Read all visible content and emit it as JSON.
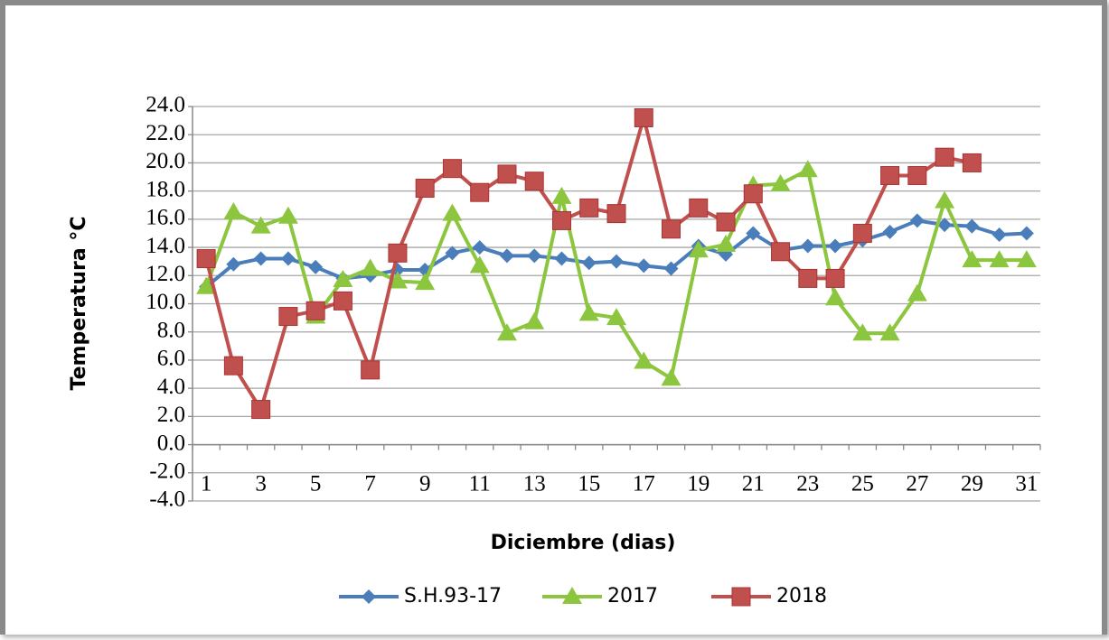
{
  "chart_data": {
    "type": "line",
    "xlabel": "Diciembre  (dias)",
    "ylabel": "Temperatura  °C",
    "categories": [
      "1",
      null,
      "3",
      null,
      "5",
      null,
      "7",
      null,
      "9",
      null,
      "11",
      null,
      "13",
      null,
      "15",
      null,
      "17",
      null,
      "19",
      null,
      "21",
      null,
      "23",
      null,
      "25",
      null,
      "27",
      null,
      "29",
      null,
      "31"
    ],
    "series": [
      {
        "name": "S.H.93-17",
        "color": "#4a7ebb",
        "marker": "diamond",
        "values": [
          11.2,
          12.8,
          13.2,
          13.2,
          12.6,
          11.8,
          12.0,
          12.4,
          12.4,
          13.6,
          14.0,
          13.4,
          13.4,
          13.2,
          12.9,
          13.0,
          12.7,
          12.5,
          14.1,
          13.5,
          15.0,
          13.8,
          14.1,
          14.1,
          14.5,
          15.1,
          15.9,
          15.6,
          15.5,
          14.9,
          15.0
        ]
      },
      {
        "name": "2017",
        "color": "#8cc63f",
        "marker": "triangle",
        "values": [
          11.2,
          16.5,
          15.5,
          16.2,
          9.1,
          11.7,
          12.5,
          11.6,
          11.5,
          16.4,
          12.7,
          7.9,
          8.7,
          17.6,
          9.3,
          9.0,
          5.9,
          4.7,
          13.8,
          14.2,
          18.4,
          18.5,
          19.5,
          10.4,
          7.9,
          7.9,
          10.7,
          17.3,
          13.1,
          13.1,
          13.1
        ]
      },
      {
        "name": "2018",
        "color": "#c0504d",
        "marker": "square",
        "values": [
          13.2,
          5.6,
          2.5,
          9.1,
          9.5,
          10.2,
          5.3,
          13.6,
          18.2,
          19.6,
          17.9,
          19.2,
          18.7,
          15.9,
          16.8,
          16.4,
          23.2,
          15.3,
          16.8,
          15.8,
          17.8,
          13.7,
          11.8,
          11.8,
          15.0,
          19.1,
          19.1,
          20.4,
          20.0,
          null,
          null
        ]
      }
    ],
    "ylim": [
      -4,
      24
    ],
    "yticks": [
      {
        "value": -4,
        "label": "-4.0"
      },
      {
        "value": -2,
        "label": "-2.0"
      },
      {
        "value": 0,
        "label": "0.0"
      },
      {
        "value": 2,
        "label": "2.0"
      },
      {
        "value": 4,
        "label": "4.0"
      },
      {
        "value": 6,
        "label": "6.0"
      },
      {
        "value": 8,
        "label": "8.0"
      },
      {
        "value": 10,
        "label": "10.0"
      },
      {
        "value": 12,
        "label": "12.0"
      },
      {
        "value": 14,
        "label": "14.0"
      },
      {
        "value": 16,
        "label": "16.0"
      },
      {
        "value": 18,
        "label": "18.0"
      },
      {
        "value": 20,
        "label": "20.0"
      },
      {
        "value": 22,
        "label": "22.0"
      },
      {
        "value": 24,
        "label": "24.0"
      }
    ],
    "grid": true,
    "legend": "bottom"
  }
}
